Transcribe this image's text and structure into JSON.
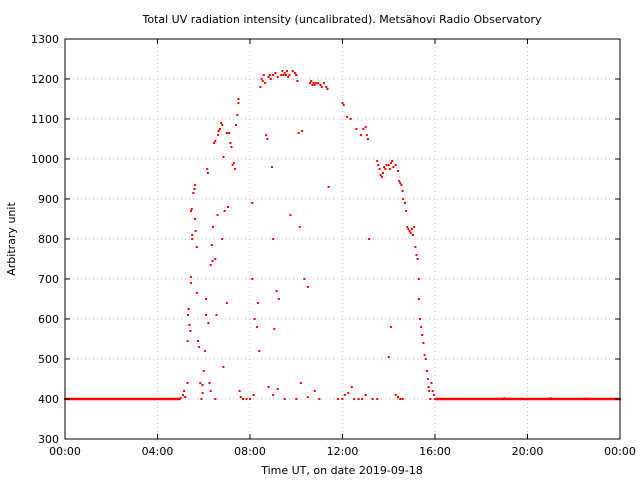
{
  "chart_data": {
    "type": "scatter",
    "title": "Total UV radiation intensity (uncalibrated). Metsähovi Radio Observatory",
    "xlabel": "Time UT, on date 2019-09-18",
    "ylabel": "Arbitrary unit",
    "xlim": [
      0,
      24
    ],
    "ylim": [
      300,
      1300
    ],
    "x_ticks": [
      0,
      4,
      8,
      12,
      16,
      20,
      24
    ],
    "x_tick_labels": [
      "00:00",
      "04:00",
      "08:00",
      "12:00",
      "16:00",
      "20:00",
      "00:00"
    ],
    "y_ticks": [
      300,
      400,
      500,
      600,
      700,
      800,
      900,
      1000,
      1100,
      1200,
      1300
    ],
    "y_tick_labels": [
      "300",
      "400",
      "500",
      "600",
      "700",
      "800",
      "900",
      "1000",
      "1100",
      "1200",
      "1300"
    ],
    "grid": true,
    "marker_color": "#ff0000",
    "series": [
      {
        "points": [
          [
            0.0,
            400
          ],
          [
            0.25,
            400
          ],
          [
            0.5,
            400
          ],
          [
            0.75,
            400
          ],
          [
            1.0,
            400
          ],
          [
            1.25,
            400
          ],
          [
            1.5,
            400
          ],
          [
            1.75,
            400
          ],
          [
            2.0,
            400
          ],
          [
            2.25,
            400
          ],
          [
            2.5,
            400
          ],
          [
            2.75,
            400
          ],
          [
            3.0,
            400
          ],
          [
            3.25,
            400
          ],
          [
            3.5,
            400
          ],
          [
            3.75,
            400
          ],
          [
            4.0,
            400
          ],
          [
            4.25,
            400
          ],
          [
            4.5,
            400
          ],
          [
            4.75,
            400
          ],
          [
            5.0,
            402
          ],
          [
            5.1,
            410
          ],
          [
            5.15,
            420
          ],
          [
            5.2,
            405
          ],
          [
            5.3,
            440
          ],
          [
            5.3,
            545
          ],
          [
            5.32,
            610
          ],
          [
            5.35,
            625
          ],
          [
            5.38,
            585
          ],
          [
            5.42,
            570
          ],
          [
            5.45,
            705
          ],
          [
            5.45,
            690
          ],
          [
            5.45,
            870
          ],
          [
            5.48,
            875
          ],
          [
            5.5,
            800
          ],
          [
            5.5,
            810
          ],
          [
            5.55,
            915
          ],
          [
            5.6,
            925
          ],
          [
            5.62,
            935
          ],
          [
            5.62,
            850
          ],
          [
            5.65,
            820
          ],
          [
            5.7,
            780
          ],
          [
            5.7,
            665
          ],
          [
            5.75,
            545
          ],
          [
            5.8,
            530
          ],
          [
            5.85,
            440
          ],
          [
            5.9,
            400
          ],
          [
            5.95,
            415
          ],
          [
            5.95,
            435
          ],
          [
            6.0,
            470
          ],
          [
            6.05,
            520
          ],
          [
            6.1,
            610
          ],
          [
            6.1,
            650
          ],
          [
            6.15,
            975
          ],
          [
            6.18,
            965
          ],
          [
            6.2,
            590
          ],
          [
            6.25,
            440
          ],
          [
            6.3,
            420
          ],
          [
            6.3,
            735
          ],
          [
            6.35,
            785
          ],
          [
            6.38,
            745
          ],
          [
            6.4,
            830
          ],
          [
            6.45,
            1040
          ],
          [
            6.5,
            1045
          ],
          [
            6.5,
            750
          ],
          [
            6.5,
            400
          ],
          [
            6.55,
            610
          ],
          [
            6.6,
            860
          ],
          [
            6.62,
            1060
          ],
          [
            6.65,
            1070
          ],
          [
            6.7,
            1075
          ],
          [
            6.75,
            1090
          ],
          [
            6.8,
            1085
          ],
          [
            6.8,
            800
          ],
          [
            6.85,
            1005
          ],
          [
            6.85,
            480
          ],
          [
            6.9,
            870
          ],
          [
            7.0,
            1065
          ],
          [
            7.0,
            640
          ],
          [
            7.05,
            880
          ],
          [
            7.1,
            1065
          ],
          [
            7.15,
            1040
          ],
          [
            7.2,
            1030
          ],
          [
            7.25,
            985
          ],
          [
            7.3,
            990
          ],
          [
            7.35,
            975
          ],
          [
            7.4,
            1085
          ],
          [
            7.45,
            1110
          ],
          [
            7.5,
            1140
          ],
          [
            7.5,
            1150
          ],
          [
            7.55,
            420
          ],
          [
            7.6,
            405
          ],
          [
            7.7,
            400
          ],
          [
            7.85,
            400
          ],
          [
            8.0,
            400
          ],
          [
            8.1,
            700
          ],
          [
            8.1,
            890
          ],
          [
            8.15,
            410
          ],
          [
            8.2,
            600
          ],
          [
            8.3,
            580
          ],
          [
            8.35,
            640
          ],
          [
            8.4,
            520
          ],
          [
            8.45,
            1180
          ],
          [
            8.5,
            1200
          ],
          [
            8.55,
            1195
          ],
          [
            8.6,
            1210
          ],
          [
            8.65,
            1190
          ],
          [
            8.7,
            1060
          ],
          [
            8.75,
            1050
          ],
          [
            8.8,
            1205
          ],
          [
            8.85,
            1210
          ],
          [
            8.9,
            1200
          ],
          [
            8.95,
            980
          ],
          [
            9.0,
            1210
          ],
          [
            9.0,
            800
          ],
          [
            9.05,
            575
          ],
          [
            9.1,
            1215
          ],
          [
            9.15,
            670
          ],
          [
            9.2,
            1205
          ],
          [
            9.25,
            650
          ],
          [
            9.35,
            1210
          ],
          [
            9.4,
            1220
          ],
          [
            9.45,
            1210
          ],
          [
            9.5,
            1215
          ],
          [
            9.55,
            1210
          ],
          [
            9.6,
            1220
          ],
          [
            9.65,
            1205
          ],
          [
            9.7,
            1210
          ],
          [
            9.75,
            860
          ],
          [
            9.85,
            1220
          ],
          [
            9.95,
            1215
          ],
          [
            10.0,
            1210
          ],
          [
            10.05,
            1195
          ],
          [
            10.1,
            1065
          ],
          [
            10.15,
            830
          ],
          [
            10.25,
            1070
          ],
          [
            10.35,
            700
          ],
          [
            10.5,
            680
          ],
          [
            10.6,
            1190
          ],
          [
            10.65,
            1195
          ],
          [
            10.7,
            1185
          ],
          [
            10.75,
            1190
          ],
          [
            10.8,
            1185
          ],
          [
            10.85,
            1190
          ],
          [
            10.95,
            1190
          ],
          [
            11.05,
            1185
          ],
          [
            11.1,
            1180
          ],
          [
            11.2,
            1190
          ],
          [
            11.3,
            1180
          ],
          [
            11.35,
            1175
          ],
          [
            11.4,
            930
          ],
          [
            12.0,
            1140
          ],
          [
            12.05,
            1135
          ],
          [
            12.2,
            1105
          ],
          [
            12.35,
            1100
          ],
          [
            12.6,
            1075
          ],
          [
            12.8,
            1060
          ],
          [
            12.9,
            1075
          ],
          [
            13.0,
            1080
          ],
          [
            13.05,
            1060
          ],
          [
            13.1,
            1050
          ],
          [
            13.15,
            800
          ],
          [
            13.5,
            995
          ],
          [
            13.55,
            985
          ],
          [
            13.6,
            975
          ],
          [
            13.65,
            960
          ],
          [
            13.7,
            955
          ],
          [
            13.75,
            965
          ],
          [
            13.8,
            980
          ],
          [
            13.85,
            975
          ],
          [
            13.9,
            985
          ],
          [
            14.0,
            985
          ],
          [
            14.05,
            975
          ],
          [
            14.1,
            990
          ],
          [
            14.15,
            995
          ],
          [
            14.2,
            980
          ],
          [
            14.3,
            985
          ],
          [
            14.4,
            970
          ],
          [
            14.45,
            945
          ],
          [
            14.5,
            940
          ],
          [
            14.55,
            935
          ],
          [
            14.6,
            920
          ],
          [
            14.62,
            900
          ],
          [
            14.7,
            890
          ],
          [
            14.75,
            870
          ],
          [
            14.8,
            830
          ],
          [
            14.85,
            825
          ],
          [
            14.9,
            820
          ],
          [
            14.95,
            815
          ],
          [
            15.0,
            825
          ],
          [
            15.05,
            810
          ],
          [
            15.1,
            830
          ],
          [
            15.15,
            780
          ],
          [
            15.2,
            760
          ],
          [
            15.25,
            750
          ],
          [
            15.3,
            700
          ],
          [
            15.3,
            650
          ],
          [
            15.35,
            600
          ],
          [
            15.4,
            580
          ],
          [
            15.45,
            560
          ],
          [
            15.5,
            540
          ],
          [
            15.55,
            510
          ],
          [
            15.6,
            500
          ],
          [
            15.65,
            470
          ],
          [
            15.7,
            450
          ],
          [
            15.72,
            430
          ],
          [
            15.75,
            420
          ],
          [
            15.8,
            400
          ],
          [
            15.85,
            440
          ],
          [
            15.9,
            420
          ],
          [
            15.95,
            410
          ],
          [
            11.8,
            400
          ],
          [
            12.0,
            400
          ],
          [
            12.1,
            410
          ],
          [
            12.25,
            415
          ],
          [
            12.4,
            430
          ],
          [
            12.5,
            400
          ],
          [
            12.7,
            400
          ],
          [
            12.85,
            400
          ],
          [
            13.0,
            410
          ],
          [
            13.3,
            400
          ],
          [
            13.5,
            400
          ],
          [
            14.3,
            410
          ],
          [
            14.4,
            405
          ],
          [
            14.5,
            400
          ],
          [
            14.6,
            400
          ],
          [
            14.0,
            505
          ],
          [
            14.1,
            580
          ],
          [
            9.0,
            410
          ],
          [
            9.5,
            400
          ],
          [
            10.0,
            400
          ],
          [
            10.5,
            405
          ],
          [
            11.0,
            400
          ],
          [
            8.8,
            430
          ],
          [
            9.2,
            425
          ],
          [
            10.2,
            440
          ],
          [
            10.8,
            420
          ],
          [
            16.0,
            400
          ],
          [
            16.25,
            400
          ],
          [
            16.5,
            400
          ],
          [
            16.75,
            400
          ],
          [
            17.0,
            400
          ],
          [
            17.25,
            400
          ],
          [
            17.5,
            400
          ],
          [
            17.75,
            400
          ],
          [
            18.0,
            400
          ],
          [
            18.25,
            400
          ],
          [
            18.5,
            400
          ],
          [
            18.75,
            400
          ],
          [
            19.0,
            402
          ],
          [
            19.25,
            400
          ],
          [
            19.5,
            400
          ],
          [
            19.75,
            400
          ],
          [
            20.0,
            400
          ],
          [
            20.25,
            400
          ],
          [
            20.5,
            400
          ],
          [
            20.75,
            400
          ],
          [
            21.0,
            402
          ],
          [
            21.25,
            400
          ],
          [
            21.5,
            400
          ],
          [
            21.75,
            400
          ],
          [
            22.0,
            400
          ],
          [
            22.25,
            400
          ],
          [
            22.5,
            401
          ],
          [
            22.75,
            400
          ],
          [
            23.0,
            400
          ],
          [
            23.25,
            400
          ],
          [
            23.5,
            400
          ],
          [
            23.75,
            400
          ],
          [
            24.0,
            400
          ]
        ]
      }
    ]
  }
}
